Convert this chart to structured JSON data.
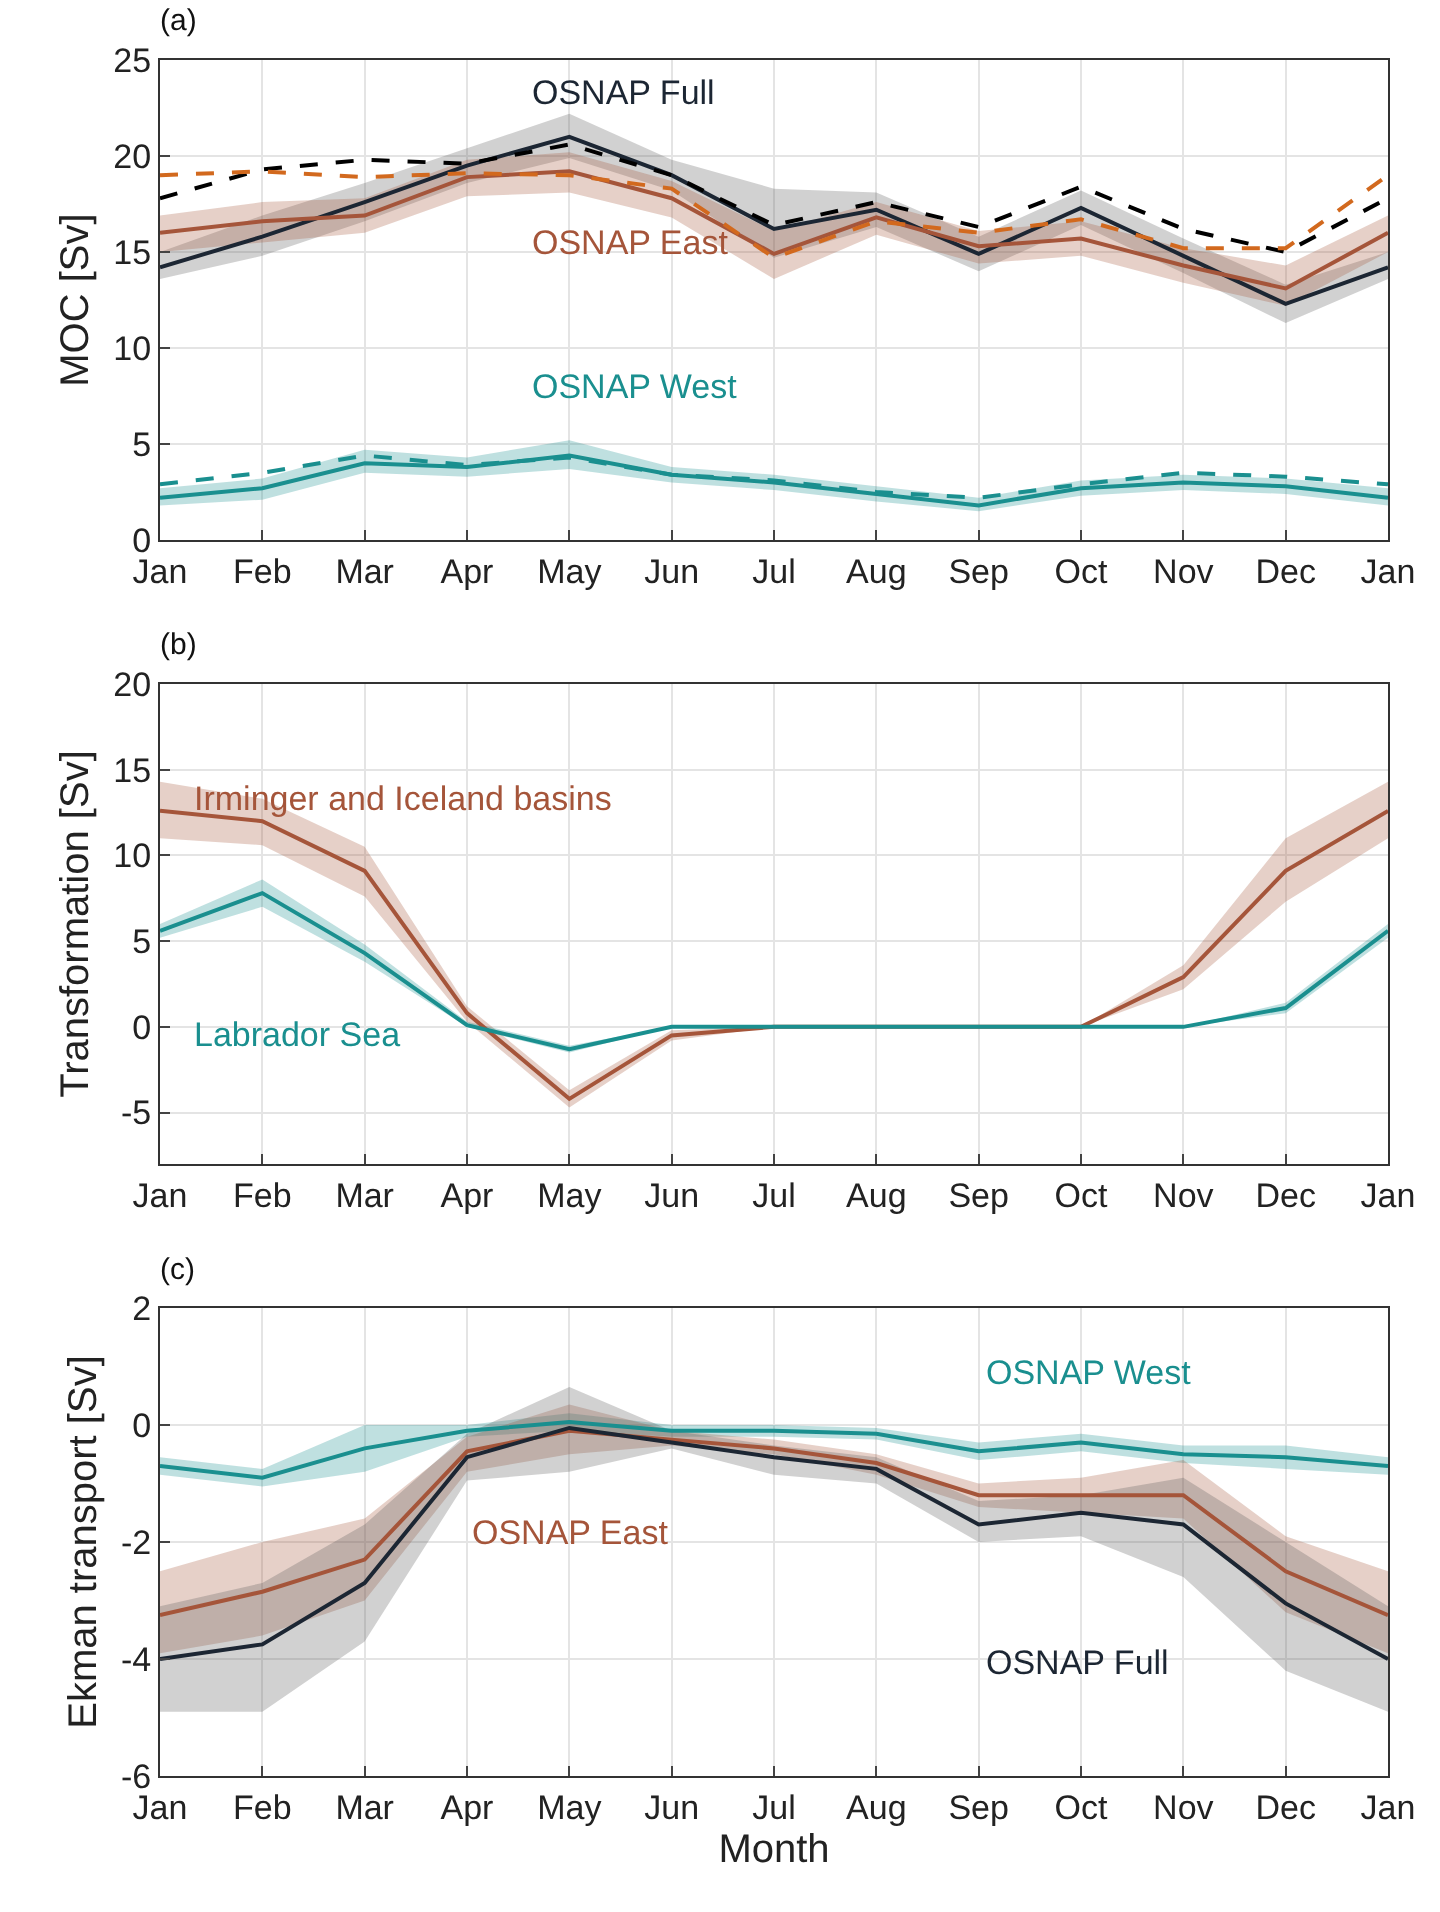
{
  "chart_data": [
    {
      "type": "line",
      "title": "(a)",
      "ylabel": "MOC [Sv]",
      "categories": [
        "Jan",
        "Feb",
        "Mar",
        "Apr",
        "May",
        "Jun",
        "Jul",
        "Aug",
        "Sep",
        "Oct",
        "Nov",
        "Dec",
        "Jan"
      ],
      "ylim": [
        0,
        25
      ],
      "yticks": [
        0,
        5,
        10,
        15,
        20,
        25
      ],
      "grid": true,
      "marker": "none",
      "series": [
        {
          "name": "OSNAP Full",
          "color": "#1c2633",
          "values": [
            14.2,
            15.8,
            17.6,
            19.5,
            21.0,
            19.0,
            16.2,
            17.2,
            14.9,
            17.3,
            14.8,
            12.3,
            14.2
          ],
          "lower": [
            13.6,
            14.8,
            16.6,
            18.6,
            19.9,
            18.2,
            14.7,
            16.3,
            14.0,
            16.4,
            13.9,
            11.3,
            13.6
          ],
          "upper": [
            15.0,
            16.9,
            18.6,
            20.4,
            22.2,
            19.8,
            18.3,
            18.1,
            15.8,
            18.2,
            15.7,
            13.3,
            15.0
          ]
        },
        {
          "color": "#000000",
          "line_style": "dashed",
          "values": [
            17.8,
            19.3,
            19.8,
            19.6,
            20.6,
            19.0,
            16.4,
            17.6,
            16.3,
            18.4,
            16.2,
            15.0,
            17.8
          ]
        },
        {
          "name": "OSNAP East",
          "color": "#a5553a",
          "values": [
            16.0,
            16.6,
            16.9,
            18.9,
            19.2,
            17.8,
            14.9,
            16.8,
            15.3,
            15.7,
            14.3,
            13.1,
            16.0
          ],
          "lower": [
            15.0,
            15.5,
            16.0,
            17.9,
            18.1,
            16.8,
            13.6,
            15.9,
            14.4,
            14.8,
            13.4,
            12.2,
            15.0
          ],
          "upper": [
            16.9,
            17.6,
            17.8,
            19.8,
            20.2,
            18.7,
            16.1,
            17.6,
            16.1,
            16.6,
            15.2,
            14.3,
            16.9
          ]
        },
        {
          "color": "#d2691e",
          "line_style": "dashed",
          "values": [
            19.0,
            19.2,
            18.9,
            19.1,
            19.0,
            18.3,
            14.7,
            16.6,
            16.0,
            16.7,
            15.2,
            15.2,
            19.0
          ]
        },
        {
          "name": "OSNAP West",
          "color": "#1a8f8f",
          "values": [
            2.2,
            2.7,
            4.0,
            3.8,
            4.4,
            3.4,
            3.0,
            2.4,
            1.8,
            2.7,
            3.0,
            2.8,
            2.2
          ],
          "lower": [
            1.8,
            2.1,
            3.5,
            3.3,
            3.7,
            3.0,
            2.6,
            2.0,
            1.5,
            2.3,
            2.6,
            2.4,
            1.8
          ],
          "upper": [
            2.7,
            3.2,
            4.7,
            4.3,
            5.2,
            3.8,
            3.4,
            2.8,
            2.2,
            3.1,
            3.4,
            3.2,
            2.7
          ]
        },
        {
          "color": "#1a8f8f",
          "line_style": "dashed",
          "values": [
            2.9,
            3.5,
            4.4,
            3.9,
            4.3,
            3.4,
            3.1,
            2.5,
            2.2,
            2.9,
            3.5,
            3.3,
            2.9
          ]
        }
      ]
    },
    {
      "type": "line",
      "title": "(b)",
      "ylabel": "Transformation [Sv]",
      "categories": [
        "Jan",
        "Feb",
        "Mar",
        "Apr",
        "May",
        "Jun",
        "Jul",
        "Aug",
        "Sep",
        "Oct",
        "Nov",
        "Dec",
        "Jan"
      ],
      "ylim": [
        -8,
        20
      ],
      "yticks": [
        -5,
        0,
        5,
        10,
        15,
        20
      ],
      "grid": true,
      "marker": "none",
      "series": [
        {
          "name": "Irminger and Iceland basins",
          "color": "#a5553a",
          "values": [
            12.6,
            12.0,
            9.1,
            0.8,
            -4.2,
            -0.5,
            0,
            0,
            0,
            0,
            2.9,
            9.1,
            12.6
          ],
          "lower": [
            11.0,
            10.6,
            7.6,
            0.3,
            -4.7,
            -0.8,
            0,
            0,
            0,
            0,
            2.2,
            7.3,
            11.0
          ],
          "upper": [
            14.3,
            13.3,
            10.5,
            1.2,
            -3.7,
            -0.2,
            0,
            0,
            0,
            0,
            3.6,
            11.0,
            14.3
          ]
        },
        {
          "name": "Labrador Sea",
          "color": "#1a8f8f",
          "values": [
            5.6,
            7.8,
            4.3,
            0.1,
            -1.3,
            0,
            0,
            0,
            0,
            0,
            0,
            1.1,
            5.6
          ],
          "lower": [
            5.2,
            7.0,
            3.8,
            0,
            -1.5,
            0,
            0,
            0,
            0,
            0,
            0,
            0.8,
            5.2
          ],
          "upper": [
            6.0,
            8.6,
            4.8,
            0.3,
            -1.1,
            0,
            0,
            0,
            0,
            0,
            0,
            1.4,
            6.0
          ]
        }
      ]
    },
    {
      "type": "line",
      "title": "(c)",
      "xlabel": "Month",
      "ylabel": "Ekman transport [Sv]",
      "categories": [
        "Jan",
        "Feb",
        "Mar",
        "Apr",
        "May",
        "Jun",
        "Jul",
        "Aug",
        "Sep",
        "Oct",
        "Nov",
        "Dec",
        "Jan"
      ],
      "ylim": [
        -6,
        2
      ],
      "yticks": [
        -6,
        -4,
        -2,
        0,
        2
      ],
      "grid": true,
      "marker": "none",
      "series": [
        {
          "name": "OSNAP West",
          "color": "#1a8f8f",
          "values": [
            -0.7,
            -0.9,
            -0.4,
            -0.1,
            0.05,
            -0.1,
            -0.1,
            -0.15,
            -0.45,
            -0.3,
            -0.5,
            -0.55,
            -0.7
          ],
          "lower": [
            -0.85,
            -1.05,
            -0.8,
            -0.2,
            -0.1,
            -0.2,
            -0.2,
            -0.25,
            -0.6,
            -0.45,
            -0.65,
            -0.75,
            -0.85
          ],
          "upper": [
            -0.55,
            -0.75,
            0.0,
            0.0,
            0.2,
            0.0,
            0.0,
            -0.05,
            -0.3,
            -0.15,
            -0.35,
            -0.35,
            -0.55
          ]
        },
        {
          "name": "OSNAP East",
          "color": "#a5553a",
          "values": [
            -3.25,
            -2.85,
            -2.3,
            -0.45,
            -0.1,
            -0.25,
            -0.4,
            -0.65,
            -1.2,
            -1.2,
            -1.2,
            -2.5,
            -3.25
          ],
          "lower": [
            -3.9,
            -3.6,
            -3.0,
            -0.8,
            -0.5,
            -0.35,
            -0.5,
            -0.85,
            -1.4,
            -1.5,
            -1.6,
            -3.2,
            -3.9
          ],
          "upper": [
            -2.5,
            -2.0,
            -1.6,
            -0.2,
            0.35,
            -0.1,
            -0.25,
            -0.5,
            -1.0,
            -0.9,
            -0.6,
            -1.9,
            -2.5
          ]
        },
        {
          "name": "OSNAP Full",
          "color": "#1c2633",
          "values": [
            -4.0,
            -3.75,
            -2.7,
            -0.55,
            -0.05,
            -0.3,
            -0.55,
            -0.75,
            -1.7,
            -1.5,
            -1.7,
            -3.05,
            -4.0
          ],
          "lower": [
            -4.9,
            -4.9,
            -3.7,
            -0.95,
            -0.8,
            -0.4,
            -0.85,
            -1.0,
            -2.0,
            -1.9,
            -2.6,
            -4.2,
            -4.9
          ],
          "upper": [
            -3.1,
            -2.7,
            -1.7,
            -0.15,
            0.65,
            -0.1,
            -0.35,
            -0.55,
            -1.3,
            -1.2,
            -0.9,
            -2.0,
            -3.1
          ]
        }
      ]
    }
  ]
}
